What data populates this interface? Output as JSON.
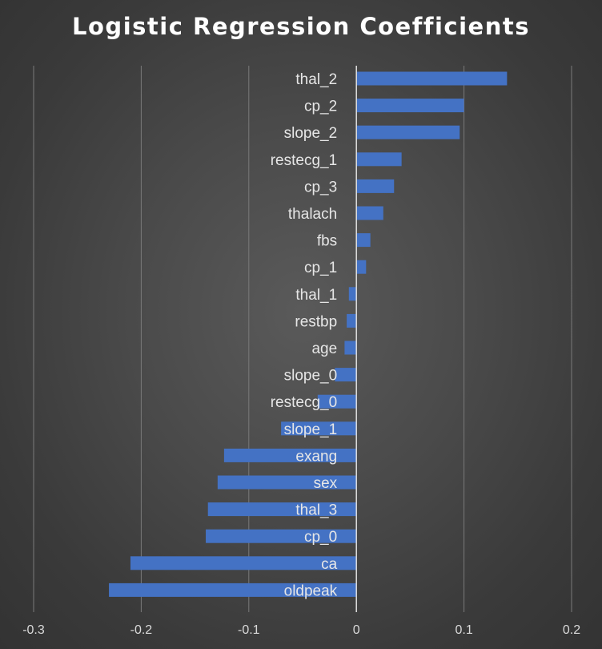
{
  "chart_data": {
    "type": "bar",
    "orientation": "horizontal",
    "title": "Logistic Regression Coefficients",
    "xlabel": "",
    "ylabel": "",
    "xlim": [
      -0.3,
      0.2
    ],
    "xticks": [
      "-0.3",
      "-0.2",
      "-0.1",
      "0",
      "0.1",
      "0.2"
    ],
    "grid": true,
    "legend": "none",
    "bar_color": "#4472c4",
    "categories": [
      "thal_2",
      "cp_2",
      "slope_2",
      "restecg_1",
      "cp_3",
      "thalach",
      "fbs",
      "cp_1",
      "thal_1",
      "restbp",
      "age",
      "slope_0",
      "restecg_0",
      "slope_1",
      "exang",
      "sex",
      "thal_3",
      "cp_0",
      "ca",
      "oldpeak"
    ],
    "values": [
      0.14,
      0.1,
      0.096,
      0.042,
      0.035,
      0.025,
      0.013,
      0.009,
      -0.007,
      -0.009,
      -0.011,
      -0.02,
      -0.036,
      -0.07,
      -0.123,
      -0.129,
      -0.138,
      -0.14,
      -0.21,
      -0.23
    ]
  }
}
